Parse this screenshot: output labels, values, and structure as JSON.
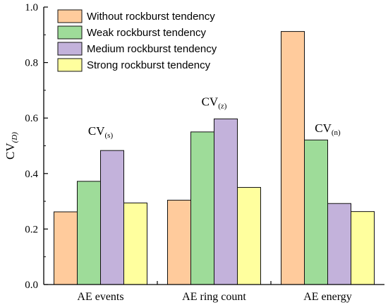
{
  "chart_data": {
    "type": "bar",
    "categories": [
      "AE events",
      "AE ring count",
      "AE energy"
    ],
    "series": [
      {
        "name": "Without rockburst tendency",
        "color": "#FFCB9C",
        "values": [
          0.262,
          0.304,
          0.912
        ]
      },
      {
        "name": "Weak rockburst tendency",
        "color": "#9EDC99",
        "values": [
          0.372,
          0.55,
          0.521
        ]
      },
      {
        "name": "Medium rockburst tendency",
        "color": "#C3B2DB",
        "values": [
          0.483,
          0.597,
          0.292
        ]
      },
      {
        "name": "Strong rockburst tendency",
        "color": "#FFFF9E",
        "values": [
          0.294,
          0.35,
          0.263
        ]
      }
    ],
    "ylim": [
      0.0,
      1.0
    ],
    "yticks": [
      "0.0",
      "0.2",
      "0.4",
      "0.6",
      "0.8",
      "1.0"
    ],
    "ytick_values": [
      0.0,
      0.2,
      0.4,
      0.6,
      0.8,
      1.0
    ],
    "ylabel": {
      "main": "CV",
      "sub": "(D)"
    },
    "xlabel": "",
    "legend_position": "top-left",
    "annotations": [
      {
        "main": "CV",
        "sub": "(s)",
        "category": "AE events",
        "value": 0.54
      },
      {
        "main": "CV",
        "sub": "(z)",
        "category": "AE ring count",
        "value": 0.645
      },
      {
        "main": "CV",
        "sub": "(n)",
        "category": "AE energy",
        "value": 0.55
      }
    ]
  }
}
